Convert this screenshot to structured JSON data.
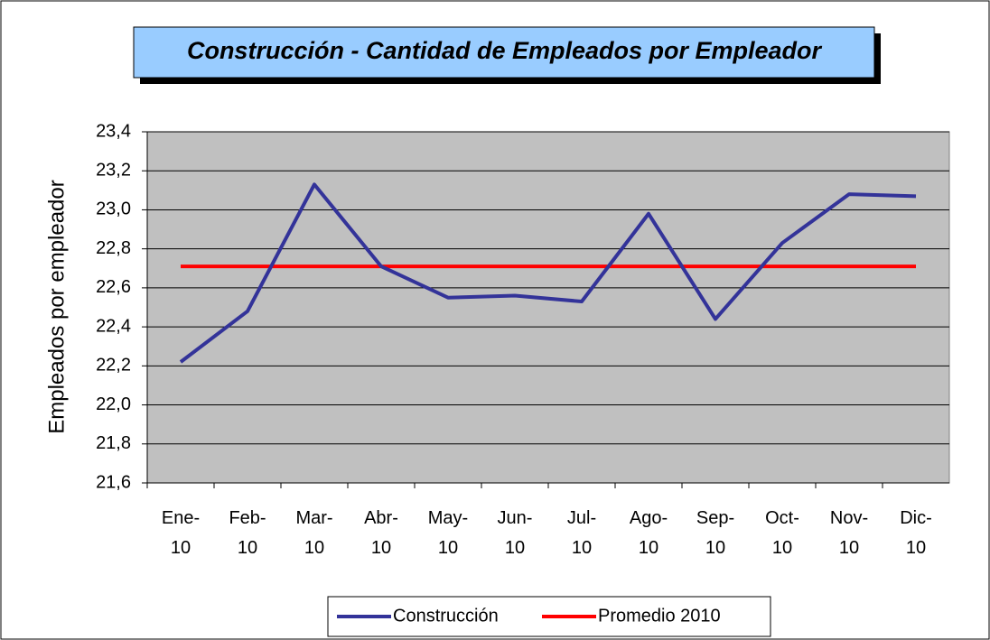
{
  "chart_data": {
    "type": "line",
    "title": "Construcción - Cantidad de Empleados por Empleador",
    "y_label": "Empleados por empleador",
    "categories": [
      "Ene-10",
      "Feb-10",
      "Mar-10",
      "Abr-10",
      "May-10",
      "Jun-10",
      "Jul-10",
      "Ago-10",
      "Sep-10",
      "Oct-10",
      "Nov-10",
      "Dic-10"
    ],
    "series": [
      {
        "name": "Construcción",
        "color": "#333399",
        "values": [
          22.22,
          22.48,
          23.13,
          22.71,
          22.55,
          22.56,
          22.53,
          22.98,
          22.44,
          22.83,
          23.08,
          23.07
        ]
      },
      {
        "name": "Promedio 2010",
        "color": "#ff0000",
        "values": [
          22.71,
          22.71,
          22.71,
          22.71,
          22.71,
          22.71,
          22.71,
          22.71,
          22.71,
          22.71,
          22.71,
          22.71
        ]
      }
    ],
    "ylim": [
      21.6,
      23.4
    ],
    "yticks": [
      {
        "value": 21.6,
        "label": "21,6"
      },
      {
        "value": 21.8,
        "label": "21,8"
      },
      {
        "value": 22.0,
        "label": "22,0"
      },
      {
        "value": 22.2,
        "label": "22,2"
      },
      {
        "value": 22.4,
        "label": "22,4"
      },
      {
        "value": 22.6,
        "label": "22,6"
      },
      {
        "value": 22.8,
        "label": "22,8"
      },
      {
        "value": 23.0,
        "label": "23,0"
      },
      {
        "value": 23.2,
        "label": "23,2"
      },
      {
        "value": 23.4,
        "label": "23,4"
      }
    ],
    "grid": true,
    "legend": "bottom"
  }
}
